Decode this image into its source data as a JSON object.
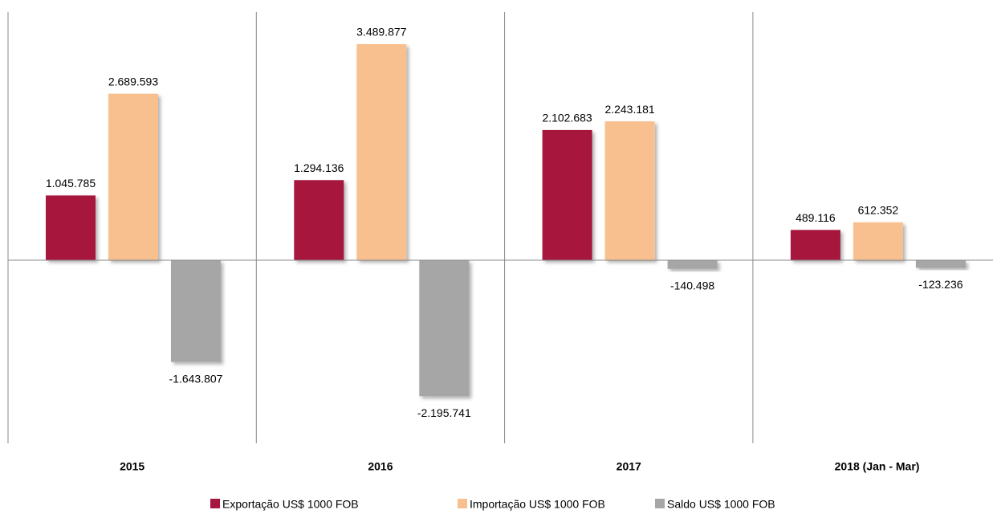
{
  "chart_data": {
    "type": "bar",
    "categories": [
      "2015",
      "2016",
      "2017",
      "2018 (Jan - Mar)"
    ],
    "series": [
      {
        "name": "Exportação US$ 1000 FOB",
        "color": "#a6163e",
        "values": [
          1045785,
          1294136,
          2102683,
          489116
        ],
        "value_labels": [
          "1.045.785",
          "1.294.136",
          "2.102.683",
          "489.116"
        ]
      },
      {
        "name": "Importação US$ 1000 FOB",
        "color": "#f9c08f",
        "values": [
          2689593,
          3489877,
          2243181,
          612352
        ],
        "value_labels": [
          "2.689.593",
          "3.489.877",
          "2.243.181",
          "612.352"
        ]
      },
      {
        "name": "Saldo US$ 1000 FOB",
        "color": "#a6a6a6",
        "values": [
          -1643807,
          -2195741,
          -140498,
          -123236
        ],
        "value_labels": [
          "-1.643.807",
          "-2.195.741",
          "-140.498",
          "-123.236"
        ]
      }
    ]
  }
}
